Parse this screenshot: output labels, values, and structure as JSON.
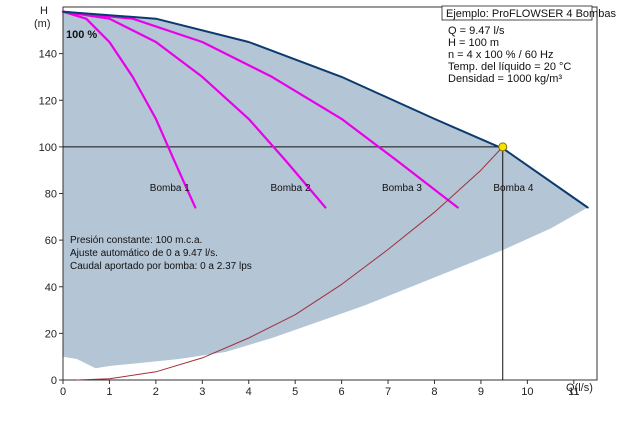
{
  "chart_data": {
    "type": "line",
    "xlabel": "Q(l/s)",
    "ylabel_top": "H",
    "ylabel_unit": "(m)",
    "xlim": [
      0,
      11.5
    ],
    "ylim": [
      0,
      160
    ],
    "x_ticks": [
      0,
      1,
      2,
      3,
      4,
      5,
      6,
      7,
      8,
      9,
      10,
      11
    ],
    "y_ticks": [
      0,
      20,
      40,
      60,
      80,
      100,
      120,
      140
    ],
    "grid": false,
    "speed_label": "100 %",
    "infobox": {
      "title": "Ejemplo: ProFLOWSER 4 Bombas",
      "lines": [
        "Q = 9.47 l/s",
        "H = 100 m",
        "n = 4 x 100 % / 60 Hz",
        "Temp. del líquido = 20 °C",
        "Densidad = 1000 kg/m³"
      ]
    },
    "notes": [
      "Presión constante: 100 m.c.a.",
      "Ajuste automático de 0 a 9.47 l/s.",
      "Caudal aportado por bomba: 0 a 2.37 lps"
    ],
    "operating_point": {
      "x": 9.47,
      "y": 100
    },
    "series": [
      {
        "name": "Bomba 1",
        "color": "#e800e8",
        "label_at": [
          2.3,
          81
        ],
        "points": [
          [
            0,
            158
          ],
          [
            0.5,
            155
          ],
          [
            1.0,
            145
          ],
          [
            1.5,
            130
          ],
          [
            2.0,
            112
          ],
          [
            2.4,
            94
          ],
          [
            2.85,
            74
          ]
        ]
      },
      {
        "name": "Bomba 2",
        "color": "#e800e8",
        "label_at": [
          4.9,
          81
        ],
        "points": [
          [
            0,
            158
          ],
          [
            1.0,
            155
          ],
          [
            2.0,
            145
          ],
          [
            3.0,
            130
          ],
          [
            4.0,
            112
          ],
          [
            4.8,
            94
          ],
          [
            5.65,
            74
          ]
        ]
      },
      {
        "name": "Bomba 3",
        "color": "#e800e8",
        "label_at": [
          7.3,
          81
        ],
        "points": [
          [
            0,
            158
          ],
          [
            1.5,
            155
          ],
          [
            3.0,
            145
          ],
          [
            4.5,
            130
          ],
          [
            6.0,
            112
          ],
          [
            7.2,
            94
          ],
          [
            8.5,
            74
          ]
        ]
      },
      {
        "name": "Bomba 4",
        "color": "#0b3a6e",
        "label_at": [
          9.7,
          81
        ],
        "points": [
          [
            0,
            158
          ],
          [
            2.0,
            155
          ],
          [
            4.0,
            145
          ],
          [
            6.0,
            130
          ],
          [
            8.0,
            112
          ],
          [
            9.5,
            99
          ],
          [
            11.3,
            74
          ]
        ]
      },
      {
        "name": "",
        "color": "#a0303a",
        "points": [
          [
            0.3,
            0
          ],
          [
            1.0,
            0.5
          ],
          [
            2.0,
            3.5
          ],
          [
            3.0,
            9.5
          ],
          [
            4.0,
            18
          ],
          [
            5.0,
            28
          ],
          [
            6.0,
            41
          ],
          [
            7.0,
            56
          ],
          [
            8.0,
            72
          ],
          [
            9.0,
            90
          ],
          [
            9.47,
            100
          ]
        ]
      }
    ],
    "envelope": {
      "color": "#b4c5d6",
      "upper": [
        [
          0,
          158
        ],
        [
          2.0,
          155
        ],
        [
          4.0,
          145
        ],
        [
          6.0,
          130
        ],
        [
          8.0,
          112
        ],
        [
          9.5,
          99
        ],
        [
          11.3,
          74
        ]
      ],
      "lower": [
        [
          11.3,
          74
        ],
        [
          10.5,
          65
        ],
        [
          9.5,
          56
        ],
        [
          8.5,
          48
        ],
        [
          7.5,
          40
        ],
        [
          6.5,
          32
        ],
        [
          5.5,
          25
        ],
        [
          4.5,
          18
        ],
        [
          3.5,
          12
        ],
        [
          2.5,
          9
        ],
        [
          2.0,
          8
        ],
        [
          1.5,
          7
        ],
        [
          1.0,
          6
        ],
        [
          0.7,
          5
        ],
        [
          0.3,
          9
        ],
        [
          0,
          10
        ]
      ]
    }
  }
}
